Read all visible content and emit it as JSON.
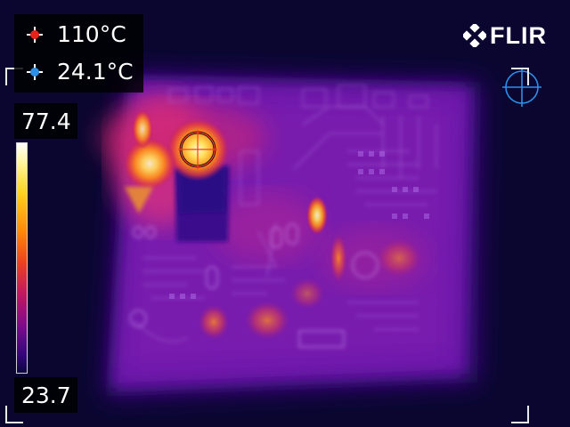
{
  "camera": {
    "brand": "FLIR",
    "max_temp_label": "110°C",
    "min_temp_label": "24.1°C",
    "max_marker_color": "#e8221b",
    "min_marker_color": "#2d8fe6"
  },
  "scale": {
    "top_value": "77.4",
    "bottom_value": "23.7"
  },
  "icons": {
    "max_marker": "red-crosshair-icon",
    "min_marker": "blue-crosshair-icon",
    "spot_meter": "spot-meter-icon",
    "blue_reticle": "blue-reticle-icon",
    "logo": "flir-logo-icon"
  },
  "colors": {
    "background": "#0a0630",
    "board_mid": "#7a18b0",
    "hot": "#ff9a1a",
    "hottest": "#fff6b0"
  }
}
